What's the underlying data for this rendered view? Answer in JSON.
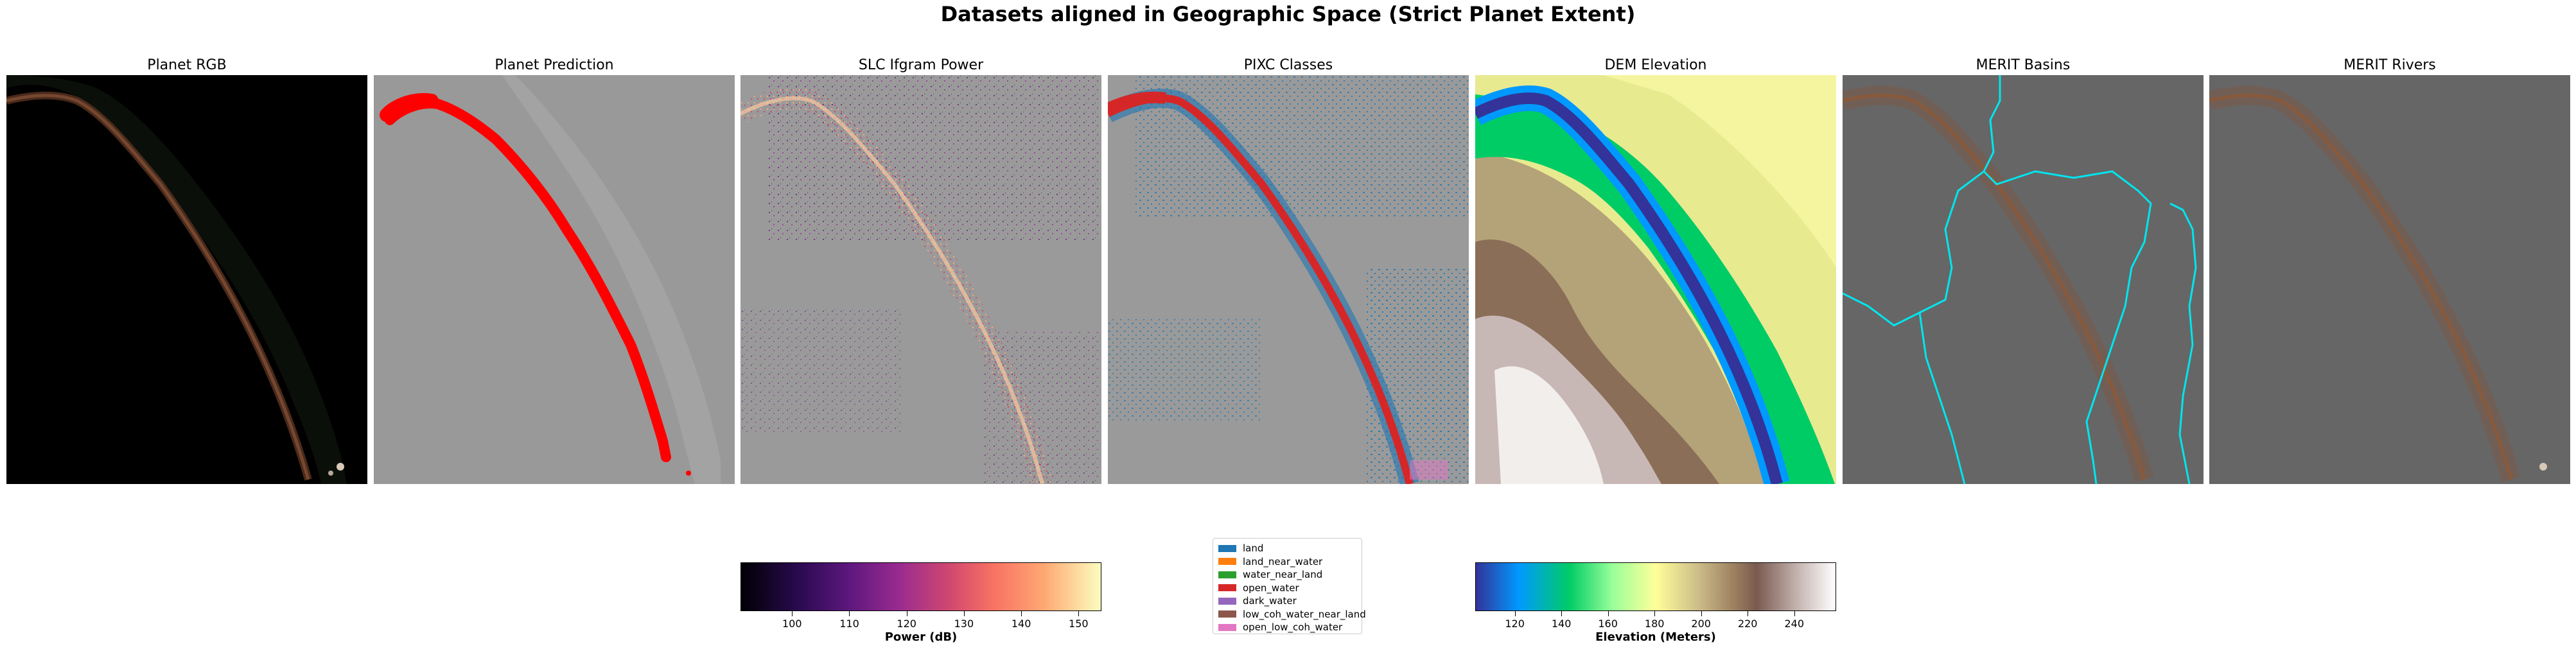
{
  "figure": {
    "title": "Datasets aligned in Geographic Space (Strict Planet Extent)"
  },
  "panels": [
    {
      "title": "Planet RGB"
    },
    {
      "title": "Planet Prediction"
    },
    {
      "title": "SLC Ifgram Power"
    },
    {
      "title": "PIXC Classes"
    },
    {
      "title": "DEM Elevation"
    },
    {
      "title": "MERIT Basins"
    },
    {
      "title": "MERIT Rivers"
    }
  ],
  "colors": {
    "prediction_water": "#ff0000",
    "basin_boundary": "#00e5ee",
    "nodata_gray": "#999999",
    "river_brown": "#7a4a32"
  },
  "power_colorbar": {
    "label": "Power (dB)",
    "ticks": [
      "100",
      "110",
      "120",
      "130",
      "140",
      "150"
    ],
    "tick_values": [
      100,
      110,
      120,
      130,
      140,
      150
    ],
    "range": [
      91,
      154
    ],
    "colormap": "magma"
  },
  "elevation_colorbar": {
    "label": "Elevation (Meters)",
    "ticks": [
      "120",
      "140",
      "160",
      "180",
      "200",
      "220",
      "240"
    ],
    "tick_values": [
      120,
      140,
      160,
      180,
      200,
      220,
      240
    ],
    "range": [
      103,
      258
    ],
    "colormap": "terrain"
  },
  "pixc_legend": {
    "items": [
      {
        "label": "land",
        "color": "#1f77b4"
      },
      {
        "label": "land_near_water",
        "color": "#ff7f0e"
      },
      {
        "label": "water_near_land",
        "color": "#2ca02c"
      },
      {
        "label": "open_water",
        "color": "#d62728"
      },
      {
        "label": "dark_water",
        "color": "#9467bd"
      },
      {
        "label": "low_coh_water_near_land",
        "color": "#8c564b"
      },
      {
        "label": "open_low_coh_water",
        "color": "#e377c2"
      }
    ]
  }
}
